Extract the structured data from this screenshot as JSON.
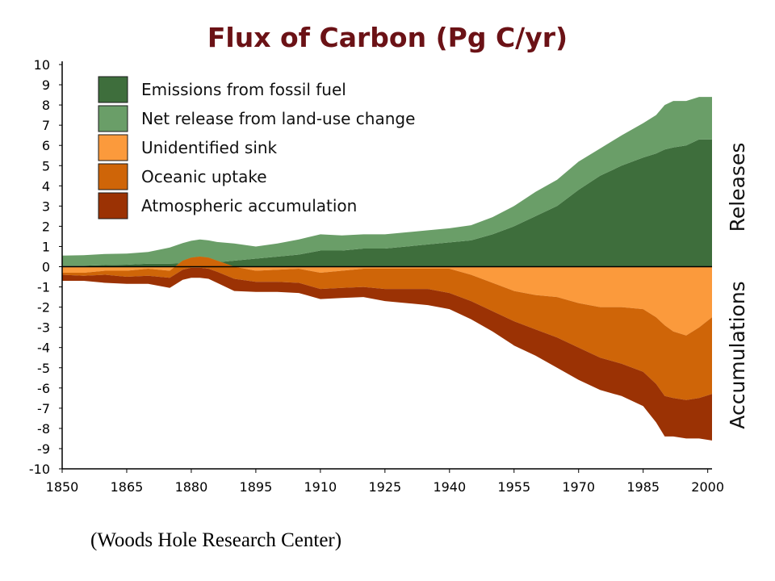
{
  "chart_data": {
    "type": "area",
    "title": "Flux of Carbon (Pg C/yr)",
    "x_ticks": [
      1850,
      1865,
      1880,
      1895,
      1910,
      1925,
      1940,
      1955,
      1970,
      1985,
      2000
    ],
    "y_ticks": [
      10,
      9,
      8,
      7,
      6,
      5,
      4,
      3,
      2,
      1,
      0,
      -1,
      -2,
      -3,
      -4,
      -5,
      -6,
      -7,
      -8,
      -9,
      -10
    ],
    "xlim": [
      1850,
      2001
    ],
    "ylim": [
      -10,
      10
    ],
    "grid": false,
    "legend_position": "top-left",
    "side_labels": {
      "positive": "Releases",
      "negative": "Accumulations"
    },
    "x": [
      1850,
      1855,
      1860,
      1865,
      1870,
      1875,
      1878,
      1880,
      1882,
      1884,
      1886,
      1890,
      1895,
      1900,
      1905,
      1910,
      1915,
      1920,
      1925,
      1930,
      1935,
      1940,
      1945,
      1950,
      1955,
      1960,
      1965,
      1970,
      1975,
      1980,
      1985,
      1988,
      1990,
      1992,
      1995,
      1998,
      2001
    ],
    "series": [
      {
        "name": "Emissions from fossil fuel",
        "color": "#3e6e3c",
        "direction": "up",
        "values": [
          0.05,
          0.05,
          0.08,
          0.1,
          0.15,
          0.15,
          0.17,
          0.18,
          0.2,
          0.2,
          0.22,
          0.3,
          0.4,
          0.5,
          0.6,
          0.8,
          0.8,
          0.9,
          0.9,
          1.0,
          1.1,
          1.2,
          1.3,
          1.6,
          2.0,
          2.5,
          3.0,
          3.8,
          4.5,
          5.0,
          5.4,
          5.6,
          5.8,
          5.9,
          6.0,
          6.3,
          6.3
        ]
      },
      {
        "name": "Net release from land-use change",
        "color": "#6a9e68",
        "direction": "up",
        "values": [
          0.5,
          0.52,
          0.55,
          0.55,
          0.58,
          0.8,
          1.0,
          1.1,
          1.15,
          1.1,
          1.0,
          0.85,
          0.6,
          0.65,
          0.75,
          0.8,
          0.75,
          0.7,
          0.7,
          0.7,
          0.7,
          0.7,
          0.75,
          0.85,
          1.0,
          1.2,
          1.3,
          1.4,
          1.35,
          1.5,
          1.7,
          1.9,
          2.2,
          2.3,
          2.2,
          2.1,
          2.1
        ]
      },
      {
        "name": "Unidentified sink",
        "color": "#fb9a3c",
        "direction": "down",
        "values": [
          0.3,
          0.3,
          0.2,
          0.2,
          0.1,
          0.2,
          -0.3,
          -0.45,
          -0.5,
          -0.45,
          -0.3,
          0.0,
          0.2,
          0.15,
          0.1,
          0.3,
          0.2,
          0.1,
          0.1,
          0.1,
          0.1,
          0.1,
          0.4,
          0.8,
          1.2,
          1.4,
          1.5,
          1.8,
          2.0,
          2.0,
          2.1,
          2.5,
          2.9,
          3.2,
          3.4,
          3.0,
          2.5
        ]
      },
      {
        "name": "Oceanic uptake",
        "color": "#cf6508",
        "direction": "down",
        "values": [
          0.1,
          0.15,
          0.2,
          0.3,
          0.35,
          0.35,
          0.45,
          0.5,
          0.55,
          0.55,
          0.55,
          0.6,
          0.55,
          0.6,
          0.7,
          0.8,
          0.85,
          0.9,
          1.0,
          1.0,
          1.0,
          1.2,
          1.3,
          1.4,
          1.5,
          1.7,
          2.0,
          2.2,
          2.5,
          2.8,
          3.1,
          3.3,
          3.5,
          3.3,
          3.2,
          3.5,
          3.8
        ]
      },
      {
        "name": "Atmospheric accumulation",
        "color": "#9b3204",
        "direction": "down",
        "values": [
          0.3,
          0.25,
          0.4,
          0.35,
          0.4,
          0.5,
          0.5,
          0.5,
          0.5,
          0.5,
          0.55,
          0.6,
          0.5,
          0.5,
          0.5,
          0.5,
          0.5,
          0.5,
          0.6,
          0.7,
          0.8,
          0.8,
          0.9,
          1.0,
          1.2,
          1.3,
          1.5,
          1.6,
          1.6,
          1.6,
          1.7,
          1.9,
          2.0,
          1.9,
          1.9,
          2.0,
          2.3
        ]
      }
    ]
  },
  "credit": "(Woods Hole Research Center)"
}
